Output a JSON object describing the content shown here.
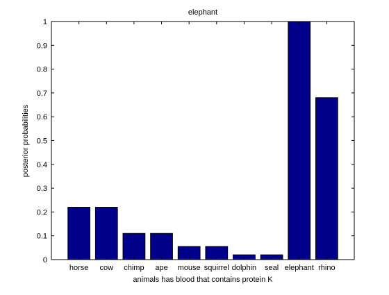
{
  "chart_data": {
    "type": "bar",
    "title": "elephant",
    "xlabel": "animals has blood that contains protein K",
    "ylabel": "posterior probabilities",
    "categories": [
      "horse",
      "cow",
      "chimp",
      "ape",
      "mouse",
      "squirrel",
      "dolphin",
      "seal",
      "elephant",
      "rhino"
    ],
    "values": [
      0.22,
      0.22,
      0.11,
      0.11,
      0.055,
      0.055,
      0.02,
      0.02,
      1.0,
      0.68
    ],
    "ylim": [
      0,
      1
    ],
    "xlim": [
      0,
      11
    ],
    "yticks": [
      "0",
      "0.1",
      "0.2",
      "0.3",
      "0.4",
      "0.5",
      "0.6",
      "0.7",
      "0.8",
      "0.9",
      "1"
    ],
    "bar_color": "#00008b",
    "grid": false,
    "legend": "none"
  }
}
